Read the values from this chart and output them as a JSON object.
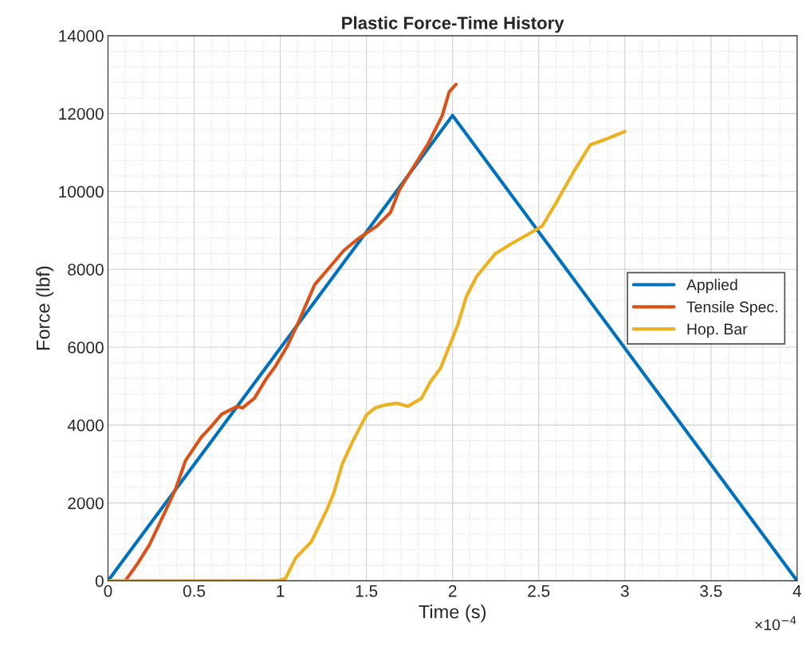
{
  "chart_data": {
    "type": "line",
    "title": "Plastic Force-Time History",
    "xlabel": "Time (s)",
    "ylabel": "Force (lbf)",
    "annotations": [
      "×10$^{−4}$"
    ],
    "xlim": [
      0,
      4
    ],
    "xticks": [
      0,
      0.5,
      1,
      1.5,
      2,
      2.5,
      3,
      3.5,
      4
    ],
    "ylim": [
      0,
      14000
    ],
    "yticks": [
      0,
      2000,
      4000,
      6000,
      8000,
      10000,
      12000,
      14000
    ],
    "grid": true,
    "legend": "right",
    "line_style": "solid",
    "series": [
      {
        "name": "Applied",
        "color": "#0072bd",
        "x": [
          0,
          2,
          4
        ],
        "values": [
          0,
          11950,
          0
        ]
      },
      {
        "name": "Tensile Spec.",
        "color": "#d95319",
        "x": [
          0.1,
          0.17,
          0.24,
          0.33,
          0.39,
          0.45,
          0.54,
          0.6,
          0.66,
          0.75,
          0.78,
          0.85,
          0.92,
          0.97,
          1.04,
          1.11,
          1.2,
          1.28,
          1.37,
          1.45,
          1.56,
          1.64,
          1.69,
          1.75,
          1.83,
          1.86,
          1.94,
          1.98,
          2.02
        ],
        "values": [
          0,
          430,
          920,
          1760,
          2330,
          3090,
          3680,
          3970,
          4280,
          4480,
          4440,
          4690,
          5200,
          5500,
          6020,
          6690,
          7610,
          8020,
          8490,
          8780,
          9110,
          9460,
          10030,
          10460,
          11030,
          11240,
          11950,
          12550,
          12750
        ]
      },
      {
        "name": "Hop. Bar",
        "color": "#edb120",
        "x": [
          0,
          0.98,
          1.03,
          1.09,
          1.18,
          1.27,
          1.31,
          1.36,
          1.42,
          1.5,
          1.55,
          1.61,
          1.68,
          1.74,
          1.82,
          1.87,
          1.93,
          2.03,
          2.08,
          2.14,
          2.25,
          2.35,
          2.43,
          2.52,
          2.6,
          2.71,
          2.8,
          2.9,
          2.95,
          3.0
        ],
        "values": [
          0,
          0,
          60,
          590,
          1000,
          1820,
          2250,
          3000,
          3580,
          4260,
          4440,
          4520,
          4560,
          4480,
          4690,
          5100,
          5460,
          6570,
          7300,
          7820,
          8410,
          8680,
          8880,
          9110,
          9700,
          10560,
          11200,
          11360,
          11450,
          11540
        ]
      }
    ]
  }
}
